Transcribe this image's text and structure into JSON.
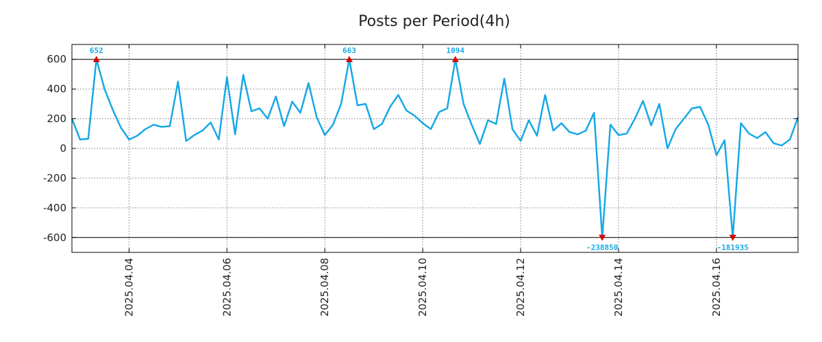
{
  "chart_data": {
    "type": "line",
    "title": "Posts per Period(4h)",
    "xlabel": "",
    "ylabel": "",
    "ylim": [
      -700,
      700
    ],
    "yticks": [
      -600,
      -400,
      -200,
      0,
      200,
      400,
      600
    ],
    "ytick_labels": [
      "-600",
      "-400",
      "-200",
      "0",
      "200",
      "400",
      "600"
    ],
    "reference_lines": [
      600,
      -600
    ],
    "x_start": "2025.04.02 20:00",
    "x_end": "2025.04.17 16:00",
    "xticks": [
      {
        "label": "2025.04.04",
        "hours": 28
      },
      {
        "label": "2025.04.06",
        "hours": 76
      },
      {
        "label": "2025.04.08",
        "hours": 124
      },
      {
        "label": "2025.04.10",
        "hours": 172
      },
      {
        "label": "2025.04.12",
        "hours": 220
      },
      {
        "label": "2025.04.14",
        "hours": 268
      },
      {
        "label": "2025.04.16",
        "hours": 316
      }
    ],
    "grid": true,
    "line_color": "#16a8e6",
    "series": [
      {
        "name": "Posts",
        "x_hours": [
          0,
          4,
          8,
          12,
          16,
          20,
          24,
          28,
          32,
          36,
          40,
          44,
          48,
          52,
          56,
          60,
          64,
          68,
          72,
          76,
          80,
          84,
          88,
          92,
          96,
          100,
          104,
          108,
          112,
          116,
          120,
          124,
          128,
          132,
          136,
          140,
          144,
          148,
          152,
          156,
          160,
          164,
          168,
          172,
          176,
          180,
          184,
          188,
          192,
          196,
          200,
          204,
          208,
          212,
          216,
          220,
          224,
          228,
          232,
          236,
          240,
          244,
          248,
          252,
          256,
          260,
          264,
          268,
          272,
          276,
          280,
          284,
          288,
          292,
          296,
          300,
          304,
          308,
          312,
          316,
          320,
          324,
          328,
          332,
          336,
          340,
          344,
          348,
          352,
          356
        ],
        "values": [
          200,
          60,
          65,
          600,
          400,
          260,
          140,
          60,
          85,
          130,
          160,
          145,
          150,
          450,
          50,
          90,
          120,
          175,
          60,
          480,
          95,
          495,
          250,
          270,
          200,
          350,
          150,
          315,
          240,
          440,
          210,
          90,
          160,
          300,
          600,
          290,
          300,
          130,
          165,
          280,
          360,
          255,
          220,
          170,
          130,
          245,
          270,
          600,
          300,
          160,
          30,
          190,
          165,
          470,
          130,
          50,
          190,
          85,
          360,
          120,
          170,
          110,
          95,
          120,
          240,
          -600,
          160,
          90,
          100,
          200,
          320,
          155,
          300,
          0,
          130,
          200,
          270,
          280,
          160,
          -45,
          55,
          -600,
          170,
          100,
          70,
          110,
          35,
          20,
          60,
          210
        ]
      }
    ],
    "markers": {
      "up_color": "#dd0000",
      "down_color": "#dd0000",
      "label_color": "#16a8e6",
      "peaks": [
        {
          "hours": 12,
          "value": 600,
          "direction": "up",
          "label": "652"
        },
        {
          "hours": 136,
          "value": 600,
          "direction": "up",
          "label": "663"
        },
        {
          "hours": 188,
          "value": 600,
          "direction": "up",
          "label": "1094"
        },
        {
          "hours": 260,
          "value": -600,
          "direction": "down",
          "label": "-238850"
        },
        {
          "hours": 324,
          "value": -600,
          "direction": "down",
          "label": "-181935"
        }
      ]
    }
  }
}
